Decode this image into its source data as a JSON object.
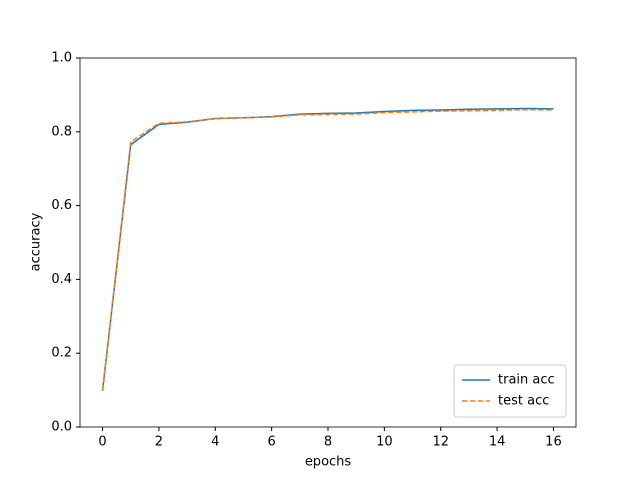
{
  "chart_data": {
    "type": "line",
    "x": [
      0,
      1,
      2,
      3,
      4,
      5,
      6,
      7,
      8,
      9,
      10,
      11,
      12,
      13,
      14,
      15,
      16
    ],
    "series": [
      {
        "name": "train acc",
        "color": "#1f77b4",
        "dash": false,
        "values": [
          0.098,
          0.765,
          0.82,
          0.826,
          0.836,
          0.838,
          0.841,
          0.848,
          0.85,
          0.851,
          0.855,
          0.858,
          0.859,
          0.861,
          0.862,
          0.863,
          0.862
        ]
      },
      {
        "name": "test acc",
        "color": "#ff7f0e",
        "dash": true,
        "values": [
          0.099,
          0.773,
          0.823,
          0.827,
          0.836,
          0.838,
          0.84,
          0.846,
          0.847,
          0.848,
          0.852,
          0.854,
          0.856,
          0.857,
          0.858,
          0.86,
          0.859
        ]
      }
    ],
    "x_label": "epochs",
    "y_label": "accuracy",
    "xlim": [
      -0.8,
      16.8
    ],
    "xticks": [
      0,
      2,
      4,
      6,
      8,
      10,
      12,
      14,
      16
    ],
    "ylim": [
      0,
      1
    ],
    "yticks": [
      {
        "value": 0,
        "label": "0.0"
      },
      0.2,
      0.4,
      0.6,
      0.8,
      {
        "value": 1,
        "label": "1.0"
      }
    ],
    "legend": "lower right"
  }
}
